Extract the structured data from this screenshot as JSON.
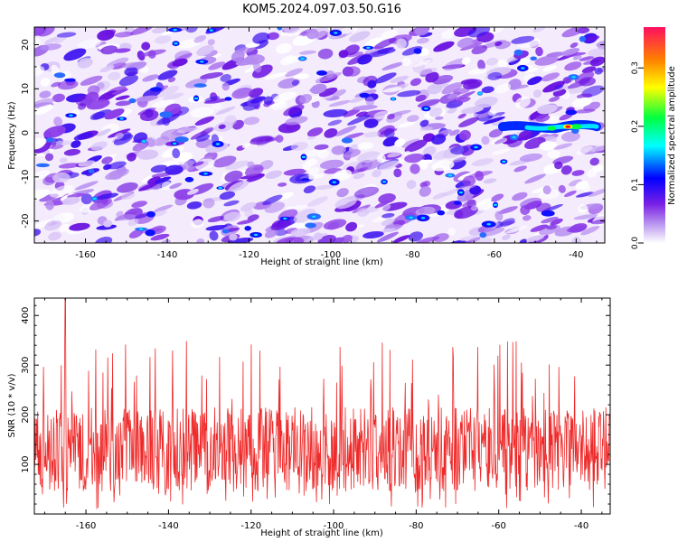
{
  "title": "KOM5.2024.097.03.50.G16",
  "chart_data": [
    {
      "type": "heatmap",
      "xlabel": "Height of straight line (km)",
      "ylabel": "Frequency (Hz)",
      "xlim": [
        -172.5,
        -33
      ],
      "ylim": [
        -25,
        24
      ],
      "x_ticks": [
        -160,
        -140,
        -120,
        -100,
        -80,
        -60,
        -40
      ],
      "y_ticks": [
        -20,
        -10,
        0,
        10,
        20
      ],
      "colorbar": {
        "label": "Normalized spectral amplitude",
        "range": [
          0.0,
          0.37
        ],
        "ticks": [
          0.0,
          0.1,
          0.2,
          0.3
        ],
        "colors": [
          "#ffffff",
          "#c0a0f0",
          "#7a20e6",
          "#0000ff",
          "#00ffff",
          "#00ff40",
          "#ffff00",
          "#ff7f00",
          "#ff1060"
        ]
      },
      "feature": {
        "description_x_range": [
          -52,
          -35
        ],
        "frequency": 1.0,
        "peak_x": -42,
        "peak_value": 0.36
      }
    },
    {
      "type": "line",
      "xlabel": "Height of straight line (km)",
      "ylabel": "SNR (10 * v/v)",
      "xlim": [
        -172.5,
        -33
      ],
      "ylim": [
        0,
        435
      ],
      "x_ticks": [
        -160,
        -140,
        -120,
        -100,
        -80,
        -60,
        -40
      ],
      "y_ticks": [
        100,
        200,
        300,
        400
      ],
      "line_color": "#ee2a2a",
      "series": [
        {
          "typical_range": [
            60,
            200
          ],
          "mean": 130,
          "max": 435,
          "max_at_x": -165
        }
      ]
    }
  ]
}
